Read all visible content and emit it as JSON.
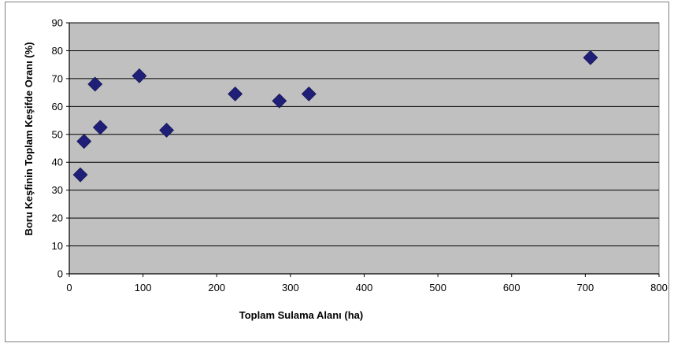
{
  "chart_data": {
    "type": "scatter",
    "title": "",
    "xlabel": "Toplam Sulama Alanı (ha)",
    "ylabel": "Boru Keşfinin Toplam Keşifde Oranı (%)",
    "xlim": [
      0,
      800
    ],
    "ylim": [
      0,
      90
    ],
    "xticks": [
      0,
      100,
      200,
      300,
      400,
      500,
      600,
      700,
      800
    ],
    "yticks": [
      0,
      10,
      20,
      30,
      40,
      50,
      60,
      70,
      80,
      90
    ],
    "grid": "horizontal",
    "legend": "none",
    "plot_background": "#c0c0c0",
    "marker": "diamond",
    "marker_color": "#1f1f78",
    "series": [
      {
        "points": [
          {
            "x": 15,
            "y": 35.5
          },
          {
            "x": 20,
            "y": 47.5
          },
          {
            "x": 35,
            "y": 68
          },
          {
            "x": 42,
            "y": 52.5
          },
          {
            "x": 95,
            "y": 71
          },
          {
            "x": 132,
            "y": 51.5
          },
          {
            "x": 225,
            "y": 64.5
          },
          {
            "x": 285,
            "y": 62
          },
          {
            "x": 325,
            "y": 64.5
          },
          {
            "x": 707,
            "y": 77.5
          }
        ]
      }
    ]
  }
}
